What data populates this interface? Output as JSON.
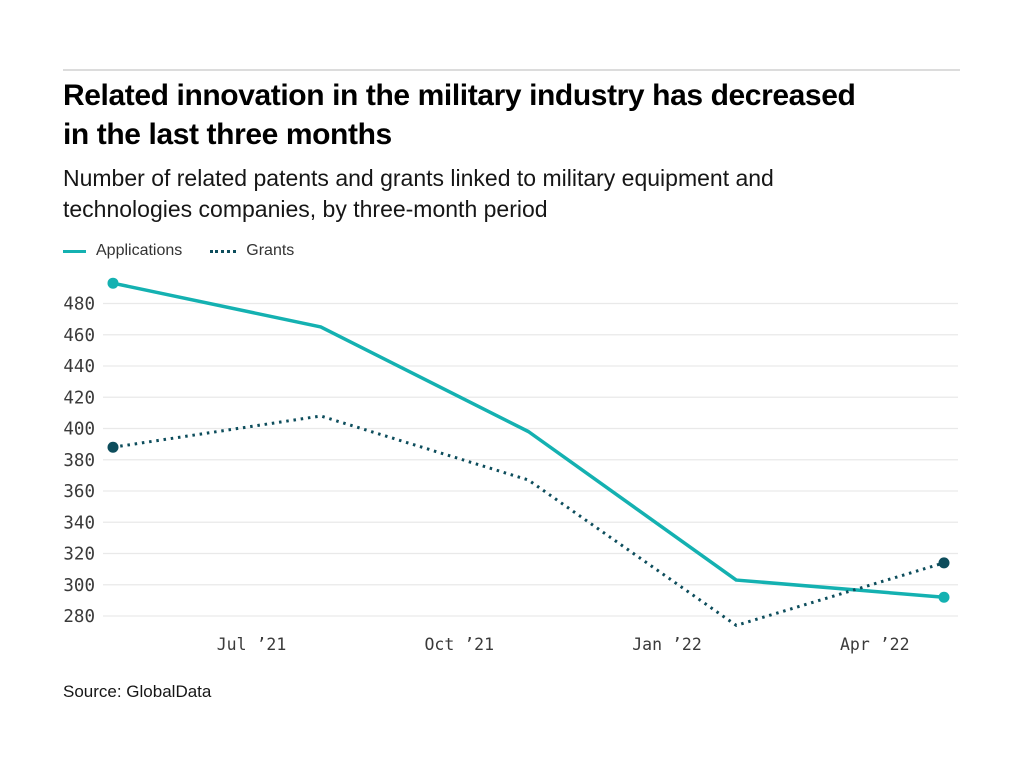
{
  "header": {
    "title_lines": [
      "Related innovation in the military industry has decreased",
      "in the last three months"
    ],
    "subtitle_lines": [
      "Number of related patents and grants linked to military equipment and",
      "technologies companies, by three-month period"
    ]
  },
  "legend": [
    {
      "label": "Applications",
      "style": "solid",
      "color": "#14b1b1"
    },
    {
      "label": "Grants",
      "style": "dotted",
      "color": "#0d4d5c"
    }
  ],
  "footer": {
    "source": "Source: GlobalData"
  },
  "chart_data": {
    "type": "line",
    "title": "Related innovation in the military industry has decreased in the last three months",
    "subtitle": "Number of related patents and grants linked to military equipment and technologies companies, by three-month period",
    "xlabel": "",
    "ylabel": "",
    "x_tick_labels": [
      "Jul ’21",
      "Oct ’21",
      "Jan ’22",
      "Apr ’22"
    ],
    "x_tick_month_index": [
      2,
      5,
      8,
      11
    ],
    "points_month_index": [
      0,
      3,
      6,
      9,
      12
    ],
    "y_ticks": [
      280,
      300,
      320,
      340,
      360,
      380,
      400,
      420,
      440,
      460,
      480
    ],
    "ylim": [
      268,
      500
    ],
    "grid": "horizontal",
    "legend_position": "top-left",
    "gridline_color": "#e9e9e9",
    "series": [
      {
        "name": "Applications",
        "style": "solid",
        "color": "#14b1b1",
        "values": [
          493,
          465,
          398,
          303,
          292
        ]
      },
      {
        "name": "Grants",
        "style": "dotted",
        "color": "#0d4d5c",
        "values": [
          388,
          408,
          367,
          274,
          314
        ]
      }
    ],
    "source": "Source: GlobalData"
  }
}
